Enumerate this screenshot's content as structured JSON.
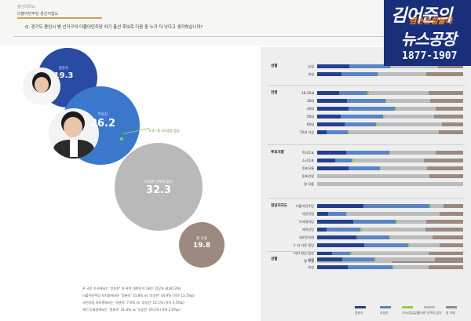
{
  "header": {
    "category": "충남대학교",
    "subtitle": "더불어민주당 용산지합도",
    "question": "Q. 경기도 용인시 병 선거구의 더불어민주당 차기 총선 후보로 다음 중 누가 더 낫다고 생각하십니까?"
  },
  "brand": {
    "line1": "김어준의",
    "line2": "겸손은힘들다",
    "line3": "뉴스공장",
    "time": "1877-1907"
  },
  "candidates": [
    {
      "name": "정춘숙",
      "value": "19.3",
      "color": "#2a4ba3"
    },
    {
      "name": "부승찬",
      "value": "26.2",
      "color": "#3a78cc"
    },
    {
      "name": "이러한 선택지 없다",
      "value": "32.3",
      "color": "#b9b9b9"
    },
    {
      "name": "잘 모름",
      "value": "19.8",
      "color": "#9c8a80"
    }
  ],
  "callout": "0.4 / 잘 모르겠음 응답",
  "footnotes": [
    "※ 국민 조사에서는 '부승찬' 과 관련 대변인이 1위는 응답자 결과(13%)",
    "더불어민주당 지지층에서는 '정춘숙' 31.8% vs '부승찬' 44.9% (격차 13.1%p)",
    "국민의힘 지지층에서는 '정춘숙' 7.6% vs '부승찬' 12.1% (격차 4.5%p)",
    "계기 투표층에서는 '정춘숙' 31.8% vs '부승찬' 29.2% (격차 2.6%p)"
  ],
  "colors": {
    "s1": "#243f8e",
    "s2": "#5a84c6",
    "s3": "#8ad14c",
    "s4": "#bcbcbc",
    "s5": "#9a8a80"
  },
  "legend": [
    "정춘숙",
    "부승찬",
    "기타/응답없음",
    "이러한 선택지 없다",
    "잘 모름"
  ],
  "groups": [
    {
      "name": "성별",
      "rows": [
        {
          "label": "남성",
          "v": [
            22.1,
            27.7,
            1.0,
            32.0,
            17.2
          ]
        },
        {
          "label": "여성",
          "v": [
            16.4,
            25.0,
            0.8,
            32.6,
            25.2
          ]
        }
      ]
    },
    {
      "name": "연령",
      "rows": [
        {
          "label": "18-29세",
          "v": [
            15.0,
            19.3,
            1.0,
            41.2,
            23.5
          ]
        },
        {
          "label": "30대",
          "v": [
            20.6,
            26.0,
            0.5,
            30.4,
            22.5
          ]
        },
        {
          "label": "40대",
          "v": [
            21.4,
            31.8,
            0.9,
            27.0,
            18.9
          ]
        },
        {
          "label": "50대",
          "v": [
            16.3,
            28.8,
            1.1,
            34.0,
            19.8
          ]
        },
        {
          "label": "60대",
          "v": [
            18.7,
            21.7,
            0.8,
            44.5,
            14.3
          ]
        },
        {
          "label": "70세 이상",
          "v": [
            6.4,
            14.6,
            1.0,
            61.5,
            16.5
          ]
        }
      ]
    },
    {
      "name": "투표의향",
      "rows": [
        {
          "label": "적극투표",
          "v": [
            19.8,
            29.8,
            0.6,
            31.1,
            18.7
          ]
        },
        {
          "label": "소극투표",
          "v": [
            12.6,
            11.3,
            1.2,
            48.0,
            26.9
          ]
        },
        {
          "label": "투표모름",
          "v": [
            21.3,
            21.6,
            0.9,
            31.5,
            24.7
          ]
        },
        {
          "label": "투표안함",
          "v": [
            0.0,
            0.0,
            0.0,
            77.0,
            23.0
          ]
        },
        {
          "label": "잘 모름",
          "v": [
            0.0,
            0.0,
            0.0,
            100.0,
            0.0
          ]
        }
      ]
    },
    {
      "name": "정당지지도",
      "rows": [
        {
          "label": "더불어민주당",
          "v": [
            31.8,
            44.9,
            1.0,
            8.8,
            13.5
          ]
        },
        {
          "label": "국민의힘",
          "v": [
            7.6,
            12.1,
            0.8,
            63.5,
            16.0
          ]
        },
        {
          "label": "녹색정의당",
          "v": [
            24.7,
            29.0,
            1.0,
            20.0,
            25.3
          ]
        },
        {
          "label": "개혁신당",
          "v": [
            6.6,
            22.9,
            1.0,
            43.5,
            26.0
          ]
        },
        {
          "label": "새로운미래",
          "v": [
            26.8,
            22.4,
            1.0,
            28.6,
            21.2
          ]
        },
        {
          "label": "그 외 다른 정당",
          "v": [
            32.4,
            30.1,
            1.0,
            20.5,
            16.0
          ]
        },
        {
          "label": "지지 정당 없음",
          "v": [
            10.3,
            12.5,
            1.5,
            52.0,
            23.7
          ]
        },
        {
          "label": "잘 모름",
          "v": [
            0.0,
            0.0,
            0.0,
            51.0,
            49.0
          ]
        }
      ]
    },
    {
      "name": "성별",
      "rows": [
        {
          "label": "남성",
          "v": [
            17.4,
            21.9,
            1.0,
            40.3,
            19.4
          ]
        },
        {
          "label": "여성",
          "v": [
            21.1,
            30.4,
            0.8,
            24.2,
            23.5
          ]
        }
      ]
    }
  ]
}
